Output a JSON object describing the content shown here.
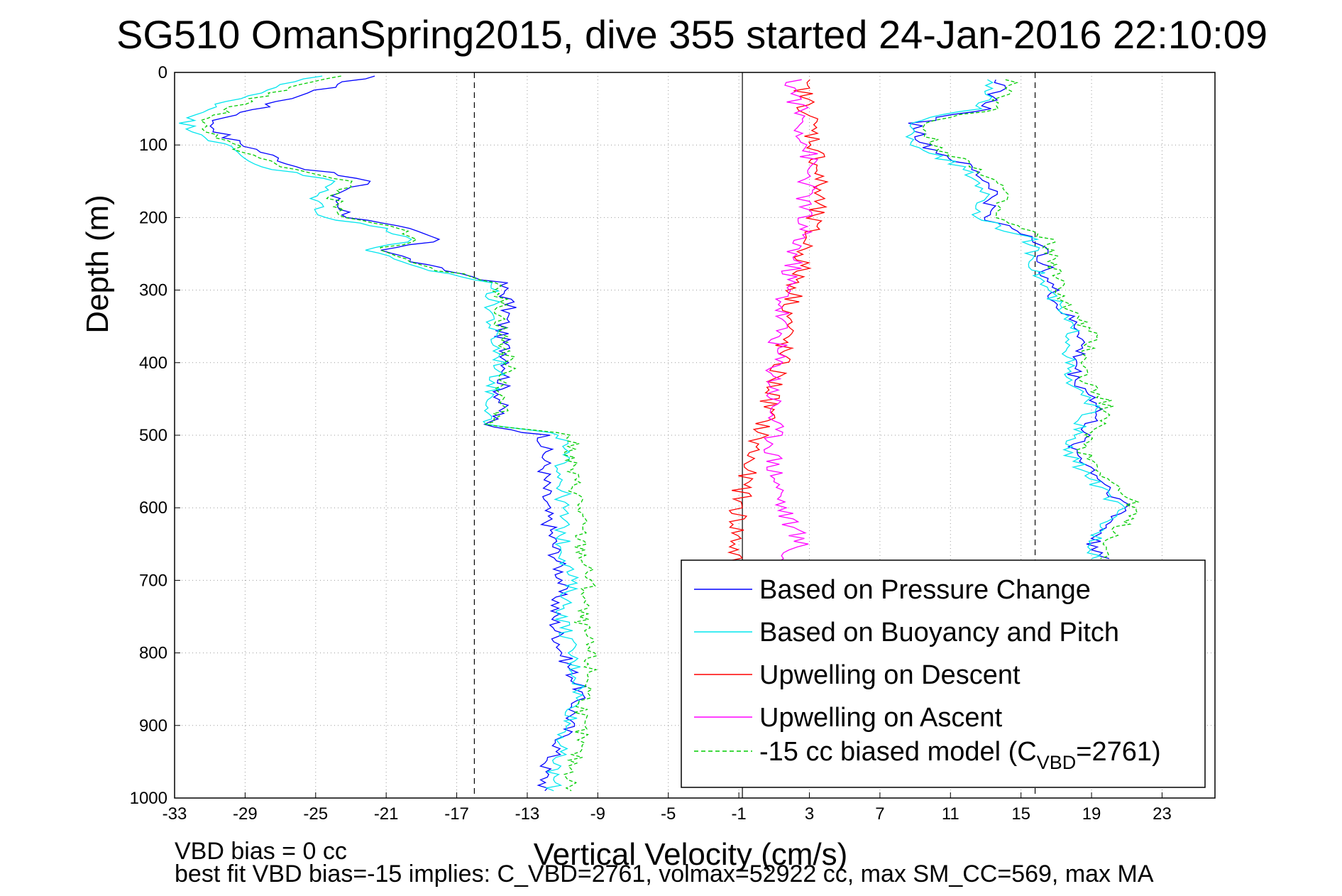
{
  "chart_data": {
    "type": "line",
    "title": "SG510 OmanSpring2015, dive 355 started 24-Jan-2016 22:10:09",
    "xlabel": "Vertical Velocity (cm/s)",
    "ylabel": "Depth (m)",
    "xlim": [
      -33,
      26
    ],
    "ylim": [
      0,
      1000
    ],
    "y_reversed": true,
    "grid": true,
    "xticks": [
      "-33",
      "-29",
      "-25",
      "-21",
      "-17",
      "-13",
      "-9",
      "-5",
      "-1",
      "3",
      "7",
      "11",
      "15",
      "19",
      "23"
    ],
    "yticks": [
      "0",
      "100",
      "200",
      "300",
      "400",
      "500",
      "600",
      "700",
      "800",
      "900",
      "1000"
    ],
    "reference_lines": {
      "solid": [
        -0.8
      ],
      "dashed": [
        -16,
        15.8
      ]
    },
    "legend_position": "bottom-right",
    "series": [
      {
        "name": "Based on Pressure Change",
        "color": "#0000ff",
        "x": [
          -22,
          -27,
          -31,
          -30,
          -28,
          -26,
          -22,
          -24,
          -23,
          -20,
          -18,
          -21,
          -19,
          -14.5,
          -14,
          -14.5,
          -14,
          -14.5,
          -14.5,
          -15.5,
          -12,
          -12,
          -12,
          -11.5,
          -11,
          -11.5,
          -11,
          -10,
          -10.5,
          -11,
          -12,
          -12
        ],
        "y": [
          5,
          40,
          70,
          90,
          110,
          130,
          150,
          170,
          200,
          215,
          230,
          245,
          265,
          290,
          320,
          360,
          400,
          440,
          470,
          485,
          500,
          550,
          600,
          650,
          700,
          750,
          800,
          850,
          890,
          920,
          960,
          990
        ]
      },
      {
        "name": "Based on Buoyancy and Pitch",
        "color": "#00e5ee",
        "x": [
          -25,
          -30,
          -32.5,
          -31,
          -29.5,
          -28,
          -24,
          -25,
          -24.5,
          -21,
          -19.5,
          -22,
          -20,
          -15,
          -15,
          -15,
          -14.5,
          -15,
          -15,
          -15.5,
          -11,
          -11,
          -11,
          -11,
          -10.5,
          -11,
          -10.5,
          -10,
          -10.5,
          -11,
          -11.5,
          -11.5
        ],
        "y": [
          5,
          40,
          70,
          90,
          110,
          130,
          150,
          170,
          200,
          215,
          230,
          245,
          265,
          290,
          320,
          360,
          400,
          440,
          470,
          485,
          500,
          550,
          600,
          650,
          700,
          750,
          800,
          850,
          890,
          920,
          960,
          990
        ]
      },
      {
        "name": "Upwelling on Descent",
        "color": "#ff0000",
        "x": [
          2.5,
          3,
          3.5,
          3.5,
          3,
          2.5,
          2,
          1.5,
          1,
          0.5,
          -0.5,
          -1,
          -1.2,
          -1.5,
          -1
        ],
        "y": [
          10,
          60,
          120,
          170,
          220,
          270,
          320,
          380,
          430,
          480,
          540,
          600,
          650,
          700,
          760
        ]
      },
      {
        "name": "Upwelling on Ascent",
        "color": "#ff00ff",
        "x": [
          2,
          2.5,
          3,
          2.8,
          2.5,
          2,
          1.5,
          1.2,
          1,
          1,
          1,
          1.5,
          2.5,
          0.5
        ],
        "y": [
          10,
          60,
          120,
          170,
          220,
          270,
          320,
          380,
          430,
          480,
          540,
          600,
          650,
          690
        ]
      },
      {
        "name": "-15 cc biased model (C_VBD=2761)",
        "color": "#00cc00",
        "x": [
          -24,
          -29,
          -31.5,
          -30.5,
          -29,
          -27,
          -23,
          -24,
          -23.5,
          -20.5,
          -19,
          -21.5,
          -19.5,
          -14.5,
          -14.5,
          -14.5,
          -14,
          -14.5,
          -14.5,
          -15,
          -10.5,
          -10.5,
          -10,
          -10,
          -9.5,
          -10,
          -9.5,
          -9.5,
          -10,
          -10,
          -10.5,
          -10.5
        ],
        "y": [
          5,
          40,
          70,
          90,
          110,
          130,
          150,
          170,
          200,
          215,
          230,
          245,
          265,
          290,
          320,
          360,
          400,
          440,
          470,
          485,
          500,
          550,
          600,
          650,
          700,
          750,
          800,
          850,
          890,
          920,
          960,
          990
        ]
      },
      {
        "name": "",
        "color": "#0000ff",
        "x": [
          14,
          13,
          9,
          9.5,
          12,
          13.5,
          13,
          16,
          16.5,
          17,
          18.5,
          18,
          19.5,
          18,
          21,
          20,
          19,
          20
        ],
        "y": [
          10,
          50,
          70,
          100,
          130,
          160,
          200,
          230,
          280,
          320,
          360,
          420,
          460,
          520,
          600,
          620,
          650,
          670
        ]
      },
      {
        "name": "",
        "color": "#00e5ee",
        "x": [
          13.5,
          12.5,
          8.5,
          9,
          11.5,
          13,
          12.5,
          15.5,
          16,
          17,
          18,
          17.5,
          19,
          17.5,
          20.5,
          19.5,
          19
        ],
        "y": [
          10,
          50,
          70,
          100,
          130,
          160,
          200,
          230,
          280,
          320,
          360,
          420,
          460,
          520,
          600,
          630,
          670
        ]
      },
      {
        "name": "",
        "color": "#00cc00",
        "x": [
          14.5,
          13.5,
          9.5,
          10,
          12.5,
          14,
          13.5,
          16.5,
          17,
          17.5,
          19,
          18.5,
          20,
          18.5,
          21.5,
          20.5,
          19.5
        ],
        "y": [
          10,
          50,
          70,
          100,
          130,
          160,
          200,
          230,
          280,
          320,
          360,
          420,
          460,
          520,
          600,
          630,
          670
        ]
      }
    ]
  },
  "legend": {
    "items": [
      {
        "label": "Based on Pressure Change",
        "color": "#0000ff",
        "dash": ""
      },
      {
        "label": "Based on Buoyancy and Pitch",
        "color": "#00e5ee",
        "dash": ""
      },
      {
        "label": "Upwelling on Descent",
        "color": "#ff0000",
        "dash": ""
      },
      {
        "label": "Upwelling on Ascent",
        "color": "#ff00ff",
        "dash": ""
      },
      {
        "label": "-15 cc biased model (C",
        "sub": "VBD",
        "suffix": "=2761)",
        "color": "#00cc00",
        "dash": "6,4"
      }
    ]
  },
  "footnotes": {
    "line1": "VBD bias = 0 cc",
    "line2": "best fit VBD bias=-15 implies: C_VBD=2761, volmax=52922 cc, max SM_CC=569, max MA"
  }
}
